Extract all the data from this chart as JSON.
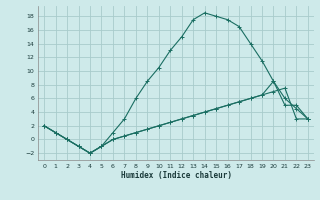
{
  "xlabel": "Humidex (Indice chaleur)",
  "bg_color": "#ceeaea",
  "grid_color": "#a8cccc",
  "line_color": "#1a6e62",
  "xlim": [
    -0.5,
    23.5
  ],
  "ylim": [
    -3,
    19.5
  ],
  "xticks": [
    0,
    1,
    2,
    3,
    4,
    5,
    6,
    7,
    8,
    9,
    10,
    11,
    12,
    13,
    14,
    15,
    16,
    17,
    18,
    19,
    20,
    21,
    22,
    23
  ],
  "yticks": [
    -2,
    0,
    2,
    4,
    6,
    8,
    10,
    12,
    14,
    16,
    18
  ],
  "series1_x": [
    0,
    1,
    2,
    3,
    4,
    5,
    6,
    7,
    8,
    9,
    10,
    11,
    12,
    13,
    14,
    15,
    16,
    17,
    18,
    19,
    20,
    21,
    22,
    23
  ],
  "series1_y": [
    2,
    1,
    0,
    -1,
    -2,
    -1,
    1,
    3,
    6,
    8.5,
    10.5,
    13,
    15,
    17.5,
    18.5,
    18,
    17.5,
    16.5,
    14,
    11.5,
    8.5,
    6,
    4.5,
    3
  ],
  "series2_x": [
    0,
    1,
    2,
    3,
    4,
    5,
    6,
    7,
    8,
    9,
    10,
    11,
    12,
    13,
    14,
    15,
    16,
    17,
    18,
    19,
    20,
    21,
    22,
    23
  ],
  "series2_y": [
    2,
    1,
    0,
    -1,
    -2,
    -1,
    0,
    0.5,
    1,
    1.5,
    2,
    2.5,
    3,
    3.5,
    4,
    4.5,
    5,
    5.5,
    6,
    6.5,
    8.5,
    5,
    5,
    3
  ],
  "series3_x": [
    0,
    1,
    2,
    3,
    4,
    5,
    6,
    7,
    8,
    9,
    10,
    11,
    12,
    13,
    14,
    15,
    16,
    17,
    18,
    19,
    20,
    21,
    22,
    23
  ],
  "series3_y": [
    2,
    1,
    0,
    -1,
    -2,
    -1,
    0,
    0.5,
    1,
    1.5,
    2,
    2.5,
    3,
    3.5,
    4,
    4.5,
    5,
    5.5,
    6,
    6.5,
    7,
    7.5,
    3,
    3
  ]
}
